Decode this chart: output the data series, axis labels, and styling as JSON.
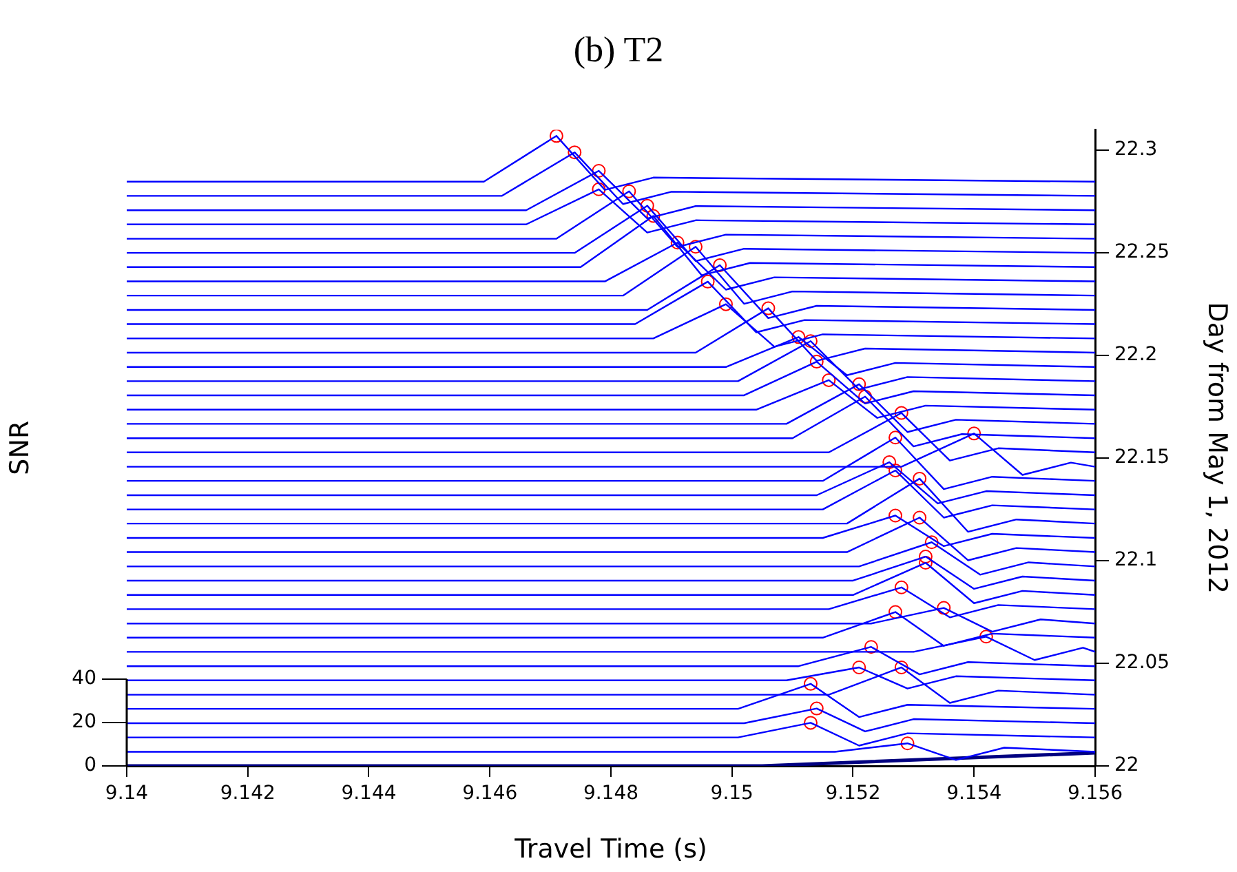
{
  "chart_data": {
    "type": "line",
    "title": "(b) T2",
    "xlabel": "Travel Time (s)",
    "ylabel": "Day from May 1, 2012",
    "y2label": "SNR",
    "xlim": [
      9.14,
      9.156
    ],
    "xticks": [
      9.14,
      9.142,
      9.144,
      9.146,
      9.148,
      9.15,
      9.152,
      9.154,
      9.156
    ],
    "ylim": [
      22,
      22.31
    ],
    "yticks": [
      22,
      22.05,
      22.1,
      22.15,
      22.2,
      22.25,
      22.3
    ],
    "y2lim": [
      0,
      293
    ],
    "y2ticks": [
      0,
      20,
      40
    ],
    "series": [
      {
        "color": "#0000ff",
        "x": [
          9.14,
          9.1459,
          9.1471,
          9.1479,
          9.1487,
          9.156
        ],
        "values": [
          22.2847,
          22.2847,
          22.307,
          22.2807,
          22.2867,
          22.2847
        ]
      },
      {
        "color": "#0000ff",
        "x": [
          9.14,
          9.1462,
          9.1474,
          9.1482,
          9.149,
          9.156
        ],
        "values": [
          22.2778,
          22.2778,
          22.299,
          22.2738,
          22.2798,
          22.2778
        ]
      },
      {
        "color": "#0000ff",
        "x": [
          9.14,
          9.1466,
          9.1478,
          9.1486,
          9.1494,
          9.156
        ],
        "values": [
          22.2708,
          22.2708,
          22.29,
          22.2668,
          22.2728,
          22.2708
        ]
      },
      {
        "color": "#0000ff",
        "x": [
          9.14,
          9.1466,
          9.1478,
          9.1486,
          9.1494,
          9.156
        ],
        "values": [
          22.2639,
          22.2639,
          22.281,
          22.2599,
          22.2659,
          22.2639
        ]
      },
      {
        "color": "#0000ff",
        "x": [
          9.14,
          9.1471,
          9.1483,
          9.1491,
          9.1499,
          9.156
        ],
        "values": [
          22.2569,
          22.2569,
          22.28,
          22.2529,
          22.2589,
          22.2569
        ]
      },
      {
        "color": "#0000ff",
        "x": [
          9.14,
          9.1474,
          9.1486,
          9.1494,
          9.1502,
          9.156
        ],
        "values": [
          22.25,
          22.25,
          22.273,
          22.246,
          22.252,
          22.25
        ]
      },
      {
        "color": "#0000ff",
        "x": [
          9.14,
          9.1475,
          9.1487,
          9.1495,
          9.1503,
          9.156
        ],
        "values": [
          22.2431,
          22.2431,
          22.268,
          22.2391,
          22.2451,
          22.2431
        ]
      },
      {
        "color": "#0000ff",
        "x": [
          9.14,
          9.1479,
          9.1491,
          9.1499,
          9.1507,
          9.156
        ],
        "values": [
          22.2361,
          22.2361,
          22.255,
          22.2321,
          22.2381,
          22.2361
        ]
      },
      {
        "color": "#0000ff",
        "x": [
          9.14,
          9.1482,
          9.1494,
          9.1502,
          9.151,
          9.156
        ],
        "values": [
          22.2292,
          22.2292,
          22.253,
          22.2252,
          22.2312,
          22.2292
        ]
      },
      {
        "color": "#0000ff",
        "x": [
          9.14,
          9.1486,
          9.1498,
          9.1506,
          9.1514,
          9.156
        ],
        "values": [
          22.2222,
          22.2222,
          22.244,
          22.2182,
          22.2242,
          22.2222
        ]
      },
      {
        "color": "#0000ff",
        "x": [
          9.14,
          9.1484,
          9.1496,
          9.1504,
          9.1512,
          9.156
        ],
        "values": [
          22.2153,
          22.2153,
          22.236,
          22.2113,
          22.2173,
          22.2153
        ]
      },
      {
        "color": "#0000ff",
        "x": [
          9.14,
          9.1487,
          9.1499,
          9.1507,
          9.1515,
          9.156
        ],
        "values": [
          22.2083,
          22.2083,
          22.225,
          22.2043,
          22.2103,
          22.2083
        ]
      },
      {
        "color": "#0000ff",
        "x": [
          9.14,
          9.1494,
          9.1506,
          9.1514,
          9.1522,
          9.156
        ],
        "values": [
          22.2014,
          22.2014,
          22.223,
          22.1974,
          22.2034,
          22.2014
        ]
      },
      {
        "color": "#0000ff",
        "x": [
          9.14,
          9.1499,
          9.1511,
          9.1519,
          9.1527,
          9.156
        ],
        "values": [
          22.1944,
          22.1944,
          22.209,
          22.1904,
          22.1964,
          22.1944
        ]
      },
      {
        "color": "#0000ff",
        "x": [
          9.14,
          9.1501,
          9.1513,
          9.1521,
          9.1529,
          9.156
        ],
        "values": [
          22.1875,
          22.1875,
          22.207,
          22.1835,
          22.1895,
          22.1875
        ]
      },
      {
        "color": "#0000ff",
        "x": [
          9.14,
          9.1502,
          9.1514,
          9.1522,
          9.153,
          9.156
        ],
        "values": [
          22.1806,
          22.1806,
          22.197,
          22.1766,
          22.1826,
          22.1806
        ]
      },
      {
        "color": "#0000ff",
        "x": [
          9.14,
          9.1504,
          9.1516,
          9.1524,
          9.1532,
          9.156
        ],
        "values": [
          22.1736,
          22.1736,
          22.188,
          22.1696,
          22.1756,
          22.1736
        ]
      },
      {
        "color": "#0000ff",
        "x": [
          9.14,
          9.1509,
          9.1521,
          9.1529,
          9.1537,
          9.156
        ],
        "values": [
          22.1667,
          22.1667,
          22.186,
          22.1627,
          22.1687,
          22.1667
        ]
      },
      {
        "color": "#0000ff",
        "x": [
          9.14,
          9.151,
          9.1522,
          9.153,
          9.1538,
          9.156
        ],
        "values": [
          22.1597,
          22.1597,
          22.18,
          22.1557,
          22.1617,
          22.1597
        ]
      },
      {
        "color": "#0000ff",
        "x": [
          9.14,
          9.1516,
          9.1528,
          9.1536,
          9.1544,
          9.156
        ],
        "values": [
          22.1528,
          22.1528,
          22.172,
          22.1488,
          22.1548,
          22.1528
        ]
      },
      {
        "color": "#0000ff",
        "x": [
          9.14,
          9.1528,
          9.154,
          9.1548,
          9.1556,
          9.156
        ],
        "values": [
          22.1458,
          22.1458,
          22.162,
          22.1418,
          22.1478,
          22.1458
        ]
      },
      {
        "color": "#0000ff",
        "x": [
          9.14,
          9.1515,
          9.1527,
          9.1535,
          9.1543,
          9.156
        ],
        "values": [
          22.1389,
          22.1389,
          22.16,
          22.1349,
          22.1409,
          22.1389
        ]
      },
      {
        "color": "#0000ff",
        "x": [
          9.14,
          9.1514,
          9.1526,
          9.1534,
          9.1542,
          9.156
        ],
        "values": [
          22.1319,
          22.1319,
          22.148,
          22.1279,
          22.1339,
          22.1319
        ]
      },
      {
        "color": "#0000ff",
        "x": [
          9.14,
          9.1515,
          9.1527,
          9.1535,
          9.1543,
          9.156
        ],
        "values": [
          22.125,
          22.125,
          22.144,
          22.121,
          22.127,
          22.125
        ]
      },
      {
        "color": "#0000ff",
        "x": [
          9.14,
          9.1519,
          9.1531,
          9.1539,
          9.1547,
          9.156
        ],
        "values": [
          22.1181,
          22.1181,
          22.14,
          22.1141,
          22.1201,
          22.1181
        ]
      },
      {
        "color": "#0000ff",
        "x": [
          9.14,
          9.1515,
          9.1527,
          9.1535,
          9.1543,
          9.156
        ],
        "values": [
          22.1111,
          22.1111,
          22.122,
          22.1071,
          22.1131,
          22.1111
        ]
      },
      {
        "color": "#0000ff",
        "x": [
          9.14,
          9.1519,
          9.1531,
          9.1539,
          9.1547,
          9.156
        ],
        "values": [
          22.1042,
          22.1042,
          22.121,
          22.1002,
          22.1062,
          22.1042
        ]
      },
      {
        "color": "#0000ff",
        "x": [
          9.14,
          9.1521,
          9.1533,
          9.1541,
          9.1549,
          9.156
        ],
        "values": [
          22.0972,
          22.0972,
          22.109,
          22.0932,
          22.0992,
          22.0972
        ]
      },
      {
        "color": "#0000ff",
        "x": [
          9.14,
          9.152,
          9.1532,
          9.154,
          9.1548,
          9.156
        ],
        "values": [
          22.0903,
          22.0903,
          22.102,
          22.0863,
          22.0923,
          22.0903
        ]
      },
      {
        "color": "#0000ff",
        "x": [
          9.14,
          9.152,
          9.1532,
          9.154,
          9.1548,
          9.156
        ],
        "values": [
          22.0833,
          22.0833,
          22.099,
          22.0793,
          22.0853,
          22.0833
        ]
      },
      {
        "color": "#0000ff",
        "x": [
          9.14,
          9.1516,
          9.1528,
          9.1536,
          9.1544,
          9.156
        ],
        "values": [
          22.0764,
          22.0764,
          22.087,
          22.0724,
          22.0784,
          22.0764
        ]
      },
      {
        "color": "#0000ff",
        "x": [
          9.14,
          9.1523,
          9.1535,
          9.1543,
          9.1551,
          9.156
        ],
        "values": [
          22.0694,
          22.0694,
          22.077,
          22.0654,
          22.0714,
          22.0694
        ]
      },
      {
        "color": "#0000ff",
        "x": [
          9.14,
          9.1515,
          9.1527,
          9.1535,
          9.1543,
          9.156
        ],
        "values": [
          22.0625,
          22.0625,
          22.075,
          22.0585,
          22.0645,
          22.0625
        ]
      },
      {
        "color": "#0000ff",
        "x": [
          9.14,
          9.153,
          9.1542,
          9.155,
          9.1558,
          9.156
        ],
        "values": [
          22.0556,
          22.0556,
          22.063,
          22.0516,
          22.0576,
          22.0556
        ]
      },
      {
        "color": "#0000ff",
        "x": [
          9.14,
          9.1511,
          9.1523,
          9.1531,
          9.1539,
          9.156
        ],
        "values": [
          22.0486,
          22.0486,
          22.058,
          22.0446,
          22.0506,
          22.0486
        ]
      },
      {
        "color": "#0000ff",
        "x": [
          9.14,
          9.1509,
          9.1521,
          9.1529,
          9.1537,
          9.156
        ],
        "values": [
          22.0417,
          22.0417,
          22.048,
          22.0377,
          22.0437,
          22.0417
        ]
      },
      {
        "color": "#0000ff",
        "x": [
          9.14,
          9.1516,
          9.1528,
          9.1536,
          9.1544,
          9.156
        ],
        "values": [
          22.0347,
          22.0347,
          22.048,
          22.0307,
          22.0367,
          22.0347
        ]
      },
      {
        "color": "#0000ff",
        "x": [
          9.14,
          9.1501,
          9.1513,
          9.1521,
          9.1529,
          9.156
        ],
        "values": [
          22.0278,
          22.0278,
          22.04,
          22.0238,
          22.0298,
          22.0278
        ]
      },
      {
        "color": "#0000ff",
        "x": [
          9.14,
          9.1502,
          9.1514,
          9.1522,
          9.153,
          9.156
        ],
        "values": [
          22.0208,
          22.0208,
          22.028,
          22.0168,
          22.0228,
          22.0208
        ]
      },
      {
        "color": "#0000ff",
        "x": [
          9.14,
          9.1501,
          9.1513,
          9.1521,
          9.1529,
          9.156
        ],
        "values": [
          22.0139,
          22.0139,
          22.021,
          22.0099,
          22.0159,
          22.0139
        ]
      },
      {
        "color": "#0000ff",
        "x": [
          9.14,
          9.1517,
          9.1529,
          9.1537,
          9.1545,
          9.156
        ],
        "values": [
          22.0069,
          22.0069,
          22.011,
          22.0029,
          22.0089,
          22.0069
        ]
      },
      {
        "color": "#000080",
        "axis": "y2",
        "x": [
          9.14,
          9.1505,
          9.156
        ],
        "values": [
          0,
          0,
          6
        ]
      },
      {
        "type": "scatter",
        "color": "#ff0000",
        "marker": "circle",
        "x": [
          9.1471,
          9.1474,
          9.1478,
          9.1478,
          9.1483,
          9.1486,
          9.1487,
          9.1491,
          9.1494,
          9.1498,
          9.1496,
          9.1499,
          9.1506,
          9.1511,
          9.1513,
          9.1514,
          9.1516,
          9.1521,
          9.1522,
          9.1528,
          9.154,
          9.1527,
          9.1526,
          9.1527,
          9.1531,
          9.1527,
          9.1531,
          9.1533,
          9.1532,
          9.1532,
          9.1528,
          9.1535,
          9.1527,
          9.1542,
          9.1523,
          9.1521,
          9.1528,
          9.1513,
          9.1514,
          9.1513,
          9.1529
        ],
        "values": [
          22.307,
          22.299,
          22.29,
          22.281,
          22.28,
          22.273,
          22.268,
          22.255,
          22.253,
          22.244,
          22.236,
          22.225,
          22.223,
          22.209,
          22.207,
          22.197,
          22.188,
          22.186,
          22.18,
          22.172,
          22.162,
          22.16,
          22.148,
          22.144,
          22.14,
          22.122,
          22.121,
          22.109,
          22.102,
          22.099,
          22.087,
          22.077,
          22.075,
          22.063,
          22.058,
          22.048,
          22.048,
          22.04,
          22.028,
          22.021,
          22.011
        ]
      }
    ]
  }
}
